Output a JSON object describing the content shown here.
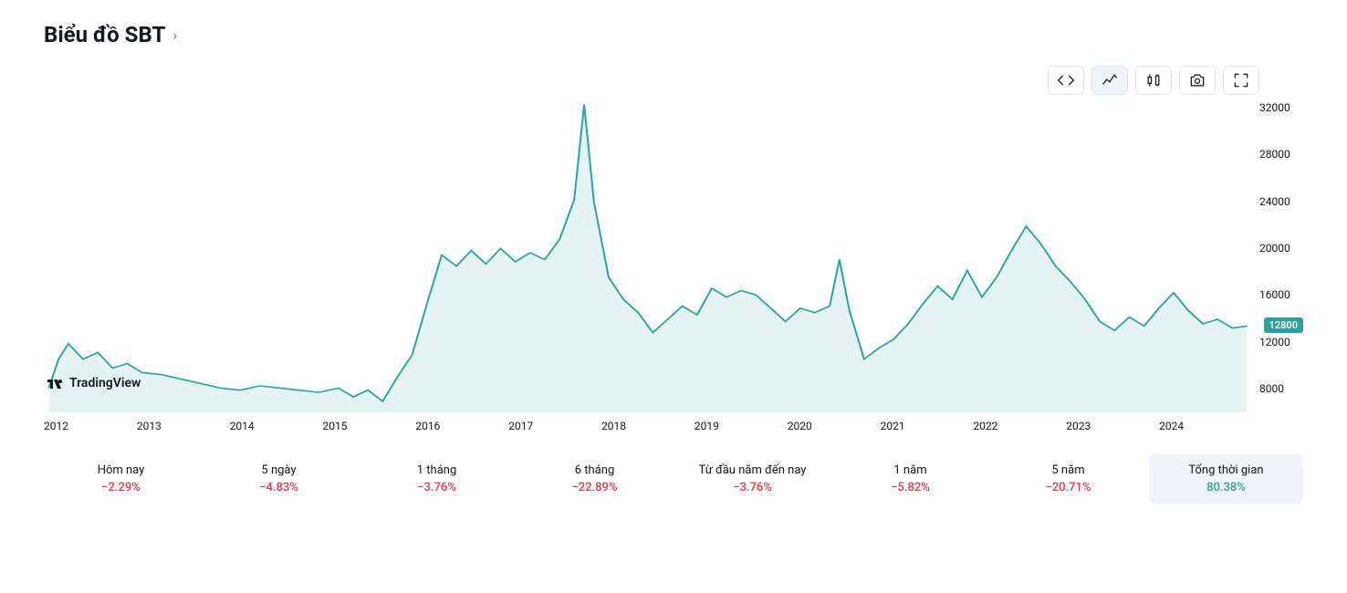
{
  "header": {
    "title": "Biểu đồ SBT",
    "chevron": "›"
  },
  "watermark": "TradingView",
  "chart": {
    "type": "area",
    "line_color": "#26a69a",
    "fill_color": "#26a69a",
    "fill_opacity": 0.12,
    "line_width": 1.5,
    "background_color": "#ffffff",
    "ylim": [
      5000,
      33000
    ],
    "yticks": [
      8000,
      12000,
      16000,
      20000,
      24000,
      28000,
      32000
    ],
    "xlim": [
      2012,
      2024.3
    ],
    "xticks": [
      2012,
      2013,
      2014,
      2015,
      2016,
      2017,
      2018,
      2019,
      2020,
      2021,
      2022,
      2023,
      2024
    ],
    "current_price": 12800,
    "badge_color": "#26a69a",
    "series": [
      {
        "x": 2012.05,
        "y": 7200
      },
      {
        "x": 2012.15,
        "y": 9800
      },
      {
        "x": 2012.25,
        "y": 11200
      },
      {
        "x": 2012.4,
        "y": 9800
      },
      {
        "x": 2012.55,
        "y": 10400
      },
      {
        "x": 2012.7,
        "y": 9000
      },
      {
        "x": 2012.85,
        "y": 9400
      },
      {
        "x": 2013.0,
        "y": 8600
      },
      {
        "x": 2013.2,
        "y": 8400
      },
      {
        "x": 2013.4,
        "y": 8000
      },
      {
        "x": 2013.6,
        "y": 7600
      },
      {
        "x": 2013.8,
        "y": 7200
      },
      {
        "x": 2014.0,
        "y": 7000
      },
      {
        "x": 2014.2,
        "y": 7400
      },
      {
        "x": 2014.4,
        "y": 7200
      },
      {
        "x": 2014.6,
        "y": 7000
      },
      {
        "x": 2014.8,
        "y": 6800
      },
      {
        "x": 2015.0,
        "y": 7200
      },
      {
        "x": 2015.15,
        "y": 6400
      },
      {
        "x": 2015.3,
        "y": 7000
      },
      {
        "x": 2015.45,
        "y": 6000
      },
      {
        "x": 2015.6,
        "y": 8200
      },
      {
        "x": 2015.75,
        "y": 10200
      },
      {
        "x": 2015.9,
        "y": 14800
      },
      {
        "x": 2016.05,
        "y": 19200
      },
      {
        "x": 2016.2,
        "y": 18200
      },
      {
        "x": 2016.35,
        "y": 19600
      },
      {
        "x": 2016.5,
        "y": 18400
      },
      {
        "x": 2016.65,
        "y": 19800
      },
      {
        "x": 2016.8,
        "y": 18600
      },
      {
        "x": 2016.95,
        "y": 19400
      },
      {
        "x": 2017.1,
        "y": 18800
      },
      {
        "x": 2017.25,
        "y": 20600
      },
      {
        "x": 2017.4,
        "y": 24200
      },
      {
        "x": 2017.5,
        "y": 32800
      },
      {
        "x": 2017.6,
        "y": 24000
      },
      {
        "x": 2017.75,
        "y": 17200
      },
      {
        "x": 2017.9,
        "y": 15200
      },
      {
        "x": 2018.05,
        "y": 14000
      },
      {
        "x": 2018.2,
        "y": 12200
      },
      {
        "x": 2018.35,
        "y": 13400
      },
      {
        "x": 2018.5,
        "y": 14600
      },
      {
        "x": 2018.65,
        "y": 13800
      },
      {
        "x": 2018.8,
        "y": 16200
      },
      {
        "x": 2018.95,
        "y": 15400
      },
      {
        "x": 2019.1,
        "y": 16000
      },
      {
        "x": 2019.25,
        "y": 15600
      },
      {
        "x": 2019.4,
        "y": 14400
      },
      {
        "x": 2019.55,
        "y": 13200
      },
      {
        "x": 2019.7,
        "y": 14400
      },
      {
        "x": 2019.85,
        "y": 14000
      },
      {
        "x": 2020.0,
        "y": 14600
      },
      {
        "x": 2020.1,
        "y": 18800
      },
      {
        "x": 2020.2,
        "y": 14200
      },
      {
        "x": 2020.35,
        "y": 9800
      },
      {
        "x": 2020.5,
        "y": 10800
      },
      {
        "x": 2020.65,
        "y": 11600
      },
      {
        "x": 2020.8,
        "y": 13000
      },
      {
        "x": 2020.95,
        "y": 14800
      },
      {
        "x": 2021.1,
        "y": 16400
      },
      {
        "x": 2021.25,
        "y": 15200
      },
      {
        "x": 2021.4,
        "y": 17800
      },
      {
        "x": 2021.55,
        "y": 15400
      },
      {
        "x": 2021.7,
        "y": 17200
      },
      {
        "x": 2021.85,
        "y": 19600
      },
      {
        "x": 2022.0,
        "y": 21800
      },
      {
        "x": 2022.15,
        "y": 20200
      },
      {
        "x": 2022.3,
        "y": 18200
      },
      {
        "x": 2022.45,
        "y": 16800
      },
      {
        "x": 2022.6,
        "y": 15200
      },
      {
        "x": 2022.75,
        "y": 13200
      },
      {
        "x": 2022.9,
        "y": 12400
      },
      {
        "x": 2023.05,
        "y": 13600
      },
      {
        "x": 2023.2,
        "y": 12800
      },
      {
        "x": 2023.35,
        "y": 14400
      },
      {
        "x": 2023.5,
        "y": 15800
      },
      {
        "x": 2023.65,
        "y": 14200
      },
      {
        "x": 2023.8,
        "y": 13000
      },
      {
        "x": 2023.95,
        "y": 13400
      },
      {
        "x": 2024.1,
        "y": 12600
      },
      {
        "x": 2024.25,
        "y": 12800
      }
    ]
  },
  "periods": [
    {
      "label": "Hôm nay",
      "value": "−2.29%",
      "sign": "neg",
      "active": false
    },
    {
      "label": "5 ngày",
      "value": "−4.83%",
      "sign": "neg",
      "active": false
    },
    {
      "label": "1 tháng",
      "value": "−3.76%",
      "sign": "neg",
      "active": false
    },
    {
      "label": "6 tháng",
      "value": "−22.89%",
      "sign": "neg",
      "active": false
    },
    {
      "label": "Từ đầu năm đến nay",
      "value": "−3.76%",
      "sign": "neg",
      "active": false
    },
    {
      "label": "1 năm",
      "value": "−5.82%",
      "sign": "neg",
      "active": false
    },
    {
      "label": "5 năm",
      "value": "−20.71%",
      "sign": "neg",
      "active": false
    },
    {
      "label": "Tổng thời gian",
      "value": "80.38%",
      "sign": "pos",
      "active": true
    }
  ],
  "toolbar": [
    {
      "name": "embed",
      "active": false
    },
    {
      "name": "area-chart",
      "active": true
    },
    {
      "name": "candlestick",
      "active": false
    },
    {
      "name": "snapshot",
      "active": false
    },
    {
      "name": "fullscreen",
      "active": false
    }
  ]
}
